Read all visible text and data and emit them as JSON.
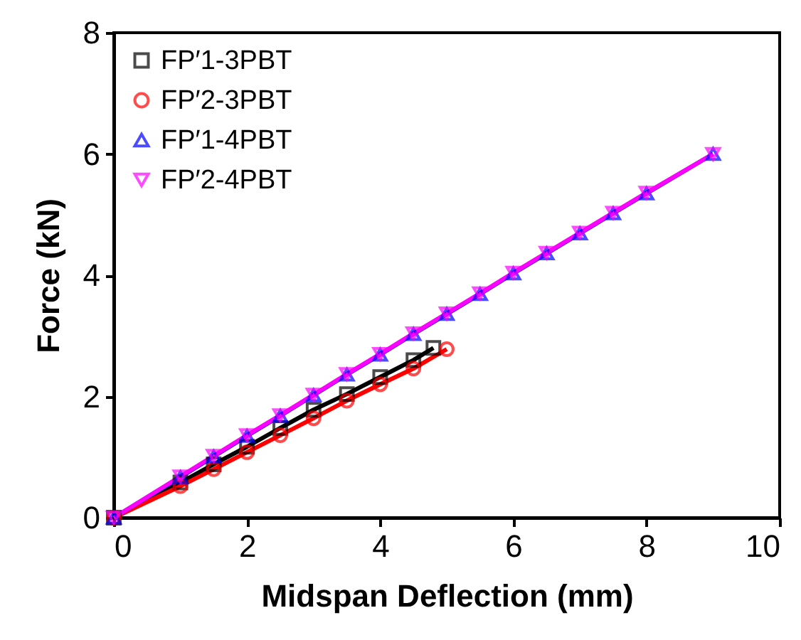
{
  "chart_data": {
    "type": "line",
    "xlabel": "Midspan Deflection (mm)",
    "ylabel": "Force (kN)",
    "xlim": [
      0,
      10
    ],
    "xticks": [
      0,
      2,
      4,
      6,
      8,
      10
    ],
    "ylim": [
      0,
      8
    ],
    "yticks": [
      0,
      2,
      4,
      6,
      8
    ],
    "grid": false,
    "legend": "top left",
    "line_style": "solid",
    "series": [
      {
        "name": "FP′1-3PBT",
        "color": "#000000",
        "marker": "square",
        "x": [
          0,
          1,
          1.5,
          2,
          2.5,
          3,
          3.5,
          4,
          4.5,
          4.8
        ],
        "values": [
          0,
          0.58,
          0.88,
          1.17,
          1.48,
          1.78,
          2.04,
          2.32,
          2.6,
          2.8
        ]
      },
      {
        "name": "FP′2-3PBT",
        "color": "#ff0000",
        "marker": "circle",
        "x": [
          0,
          1,
          1.5,
          2,
          2.5,
          3,
          3.5,
          4,
          4.5,
          5
        ],
        "values": [
          0,
          0.52,
          0.8,
          1.08,
          1.36,
          1.64,
          1.93,
          2.2,
          2.46,
          2.78
        ]
      },
      {
        "name": "FP′1-4PBT",
        "color": "#0000ff",
        "marker": "triangle",
        "x": [
          0,
          1,
          1.5,
          2,
          2.5,
          3,
          3.5,
          4,
          4.5,
          5,
          5.5,
          6,
          6.5,
          7,
          7.5,
          8,
          9
        ],
        "values": [
          0,
          0.67,
          1.01,
          1.35,
          1.68,
          2.02,
          2.36,
          2.69,
          3.03,
          3.36,
          3.69,
          4.03,
          4.36,
          4.69,
          5.02,
          5.35,
          6.0
        ]
      },
      {
        "name": "FP′2-4PBT",
        "color": "#ff00ff",
        "marker": "triangle-down",
        "x": [
          0,
          1,
          1.5,
          2,
          2.5,
          3,
          3.5,
          4,
          4.5,
          5,
          5.5,
          6,
          6.5,
          7,
          7.5,
          8,
          9
        ],
        "values": [
          0,
          0.68,
          1.02,
          1.36,
          1.69,
          2.03,
          2.37,
          2.7,
          3.04,
          3.37,
          3.7,
          4.04,
          4.37,
          4.7,
          5.03,
          5.36,
          6.0
        ]
      }
    ]
  }
}
